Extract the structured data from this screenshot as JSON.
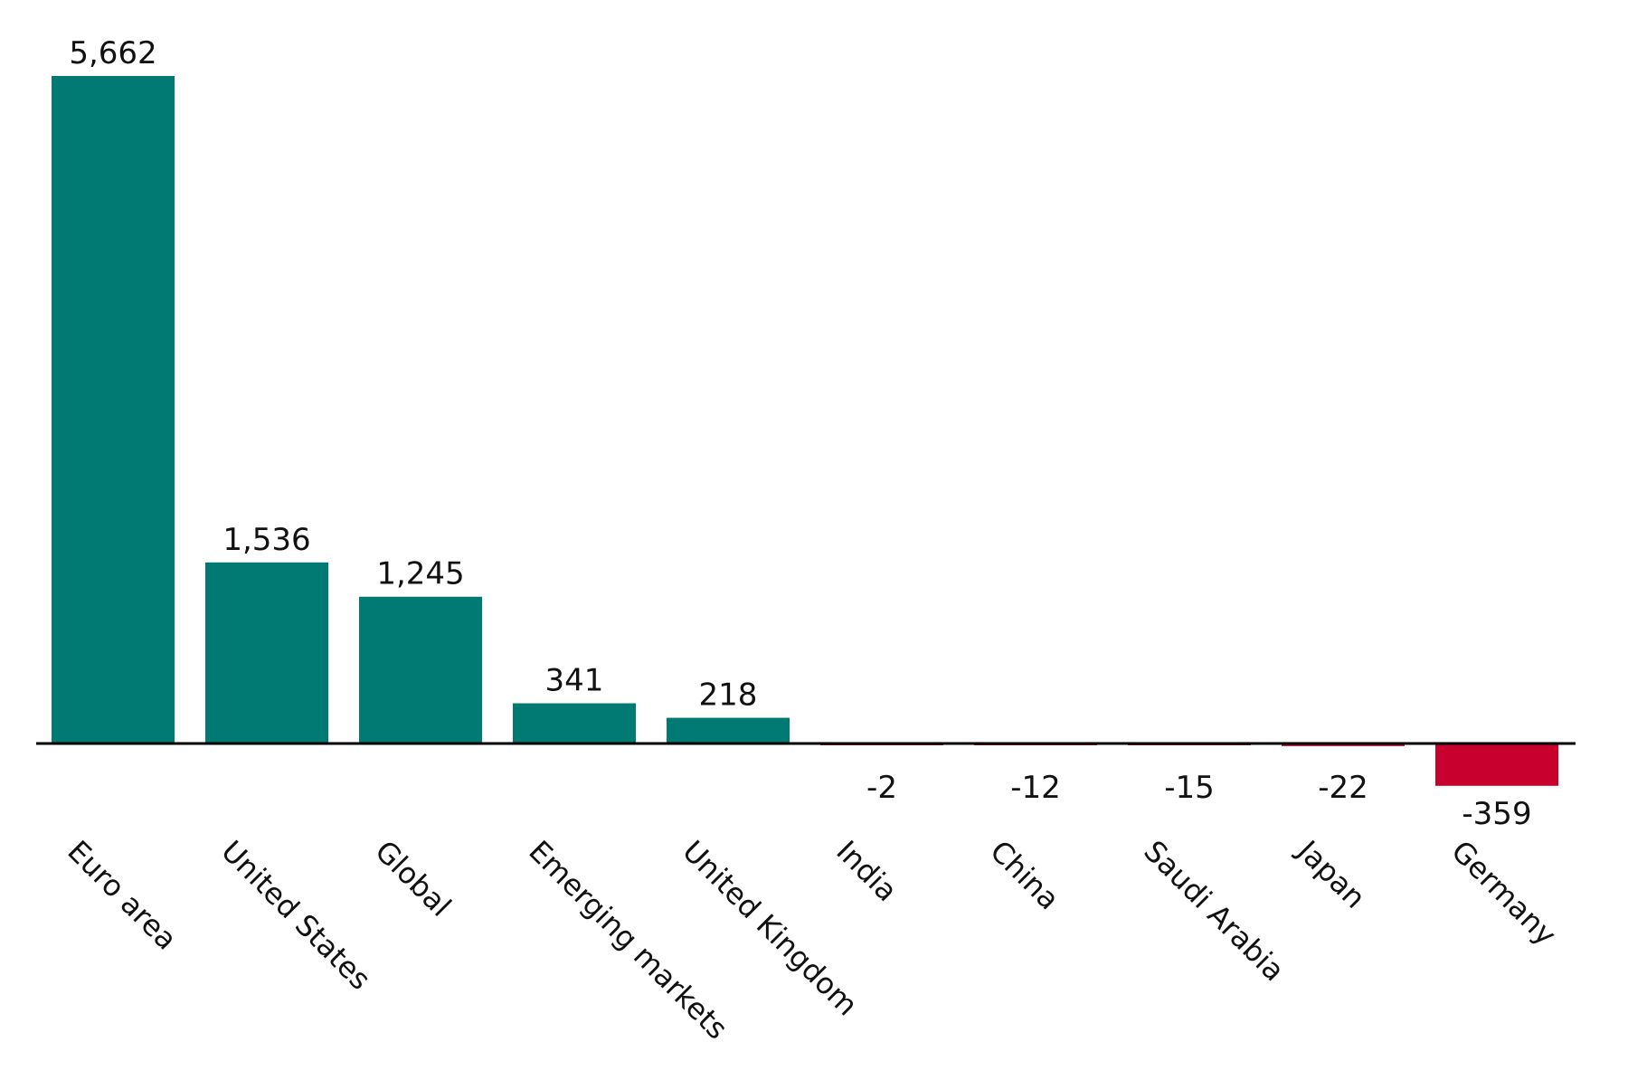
{
  "chart_data": {
    "type": "bar",
    "title": "",
    "xlabel": "",
    "ylabel": "",
    "categories": [
      "Euro area",
      "United States",
      "Global",
      "Emerging markets",
      "United Kingdom",
      "India",
      "China",
      "Saudi Arabia",
      "Japan",
      "Germany"
    ],
    "values": [
      5662,
      1536,
      1245,
      341,
      218,
      -2,
      -12,
      -15,
      -22,
      -359
    ],
    "value_labels": [
      "5,662",
      "1,536",
      "1,245",
      "341",
      "218",
      "-2",
      "-12",
      "-15",
      "-22",
      "-359"
    ],
    "ylim": [
      -359,
      5662
    ],
    "grid": false,
    "legend": "none",
    "colors": {
      "positive": "#007A72",
      "negative": "#C8002D",
      "baseline": "#000000"
    }
  }
}
